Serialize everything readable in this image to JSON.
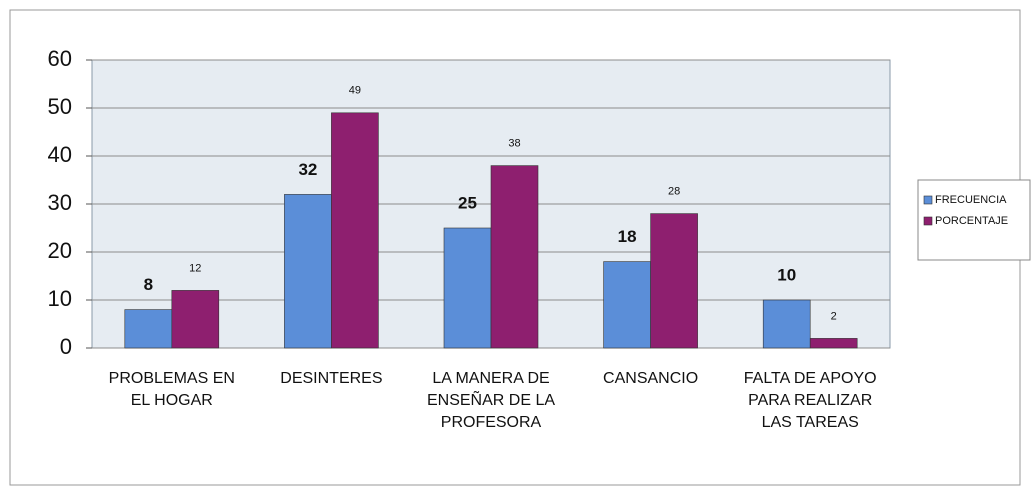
{
  "chart_data": {
    "type": "bar",
    "categories": [
      "PROBLEMAS EN EL HOGAR",
      "DESINTERES",
      "LA MANERA DE ENSEÑAR DE LA PROFESORA",
      "CANSANCIO",
      "FALTA DE APOYO PARA REALIZAR LAS TAREAS"
    ],
    "series": [
      {
        "name": "FRECUENCIA",
        "color": "#5b8ed8",
        "values": [
          8,
          32,
          25,
          18,
          10
        ]
      },
      {
        "name": "PORCENTAJE",
        "color": "#8e1f6f",
        "values": [
          12,
          49,
          38,
          28,
          2
        ]
      }
    ],
    "ylim": [
      0,
      60
    ],
    "yticks": [
      0,
      10,
      20,
      30,
      40,
      50,
      60
    ],
    "grid": true,
    "legend": "right"
  }
}
